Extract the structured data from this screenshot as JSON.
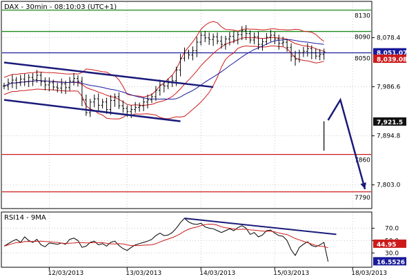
{
  "chart_data": {
    "type": "line",
    "title": "DAX - 30min - 08:10:03 (UTC+1)",
    "x_labels": [
      "12/03/2013",
      "13/03/2013",
      "14/03/2013",
      "15/03/2013",
      "18/03/2013"
    ],
    "price_panel": {
      "ylim": [
        7760,
        8145
      ],
      "tick_labels": [
        {
          "value": 8078.4,
          "text": "8,078.4"
        },
        {
          "value": 7986.6,
          "text": "7,986.6"
        },
        {
          "value": 7894.8,
          "text": "7,894.8"
        },
        {
          "value": 7803.0,
          "text": "7,803.0"
        }
      ],
      "levels": [
        {
          "value": 8130,
          "label": "8130",
          "color": "#1a8a1a"
        },
        {
          "value": 8090,
          "label": "8090",
          "color": "#1a8a1a"
        },
        {
          "value": 8050,
          "label": "8050",
          "color": "#1a1aa0"
        },
        {
          "value": 7860,
          "label": "7860",
          "color": "#cc1a1a"
        },
        {
          "value": 7790,
          "label": "7790",
          "color": "#cc1a1a"
        }
      ],
      "price_boxes": [
        {
          "value": 8051.07,
          "text": "8,051.07",
          "bg": "#1a1a9a"
        },
        {
          "value": 8039.08,
          "text": "8,039.08",
          "bg": "#cc1a1a"
        },
        {
          "value": 7921.5,
          "text": "7,921.5",
          "bg": "#111111"
        }
      ],
      "close_series": [
        7988,
        7994,
        7999,
        7994,
        8001,
        7996,
        8004,
        8000,
        8008,
        7996,
        7990,
        7994,
        7986,
        7984,
        7992,
        7985,
        7997,
        8002,
        7997,
        7962,
        7938,
        7958,
        7964,
        7952,
        7958,
        7944,
        7961,
        7968,
        7951,
        7946,
        7940,
        7944,
        7948,
        7951,
        7958,
        7962,
        7968,
        7980,
        7990,
        7988,
        7994,
        7998,
        8018,
        8040,
        8050,
        8046,
        8054,
        8070,
        8083,
        8078,
        8075,
        8080,
        8072,
        8066,
        8076,
        8081,
        8074,
        8084,
        8092,
        8086,
        8074,
        8080,
        8066,
        8071,
        8079,
        8083,
        8076,
        8068,
        8070,
        8060,
        8044,
        8038,
        8050,
        8053,
        8058,
        8050,
        8044,
        8047,
        8052
      ],
      "gap_bar": {
        "low": 7867,
        "high": 7922
      },
      "channel_lines": [
        {
          "from": [
            0,
            8032
          ],
          "to": [
            51,
            7986
          ]
        },
        {
          "from": [
            0,
            7962
          ],
          "to": [
            43,
            7922
          ]
        }
      ],
      "forecast_arrow": [
        {
          "x": 79,
          "y": 7924
        },
        {
          "x": 82,
          "y": 7962
        },
        {
          "x": 88,
          "y": 7795
        }
      ]
    },
    "rsi_panel": {
      "label": "RSI14 - 9MA",
      "ylim": [
        8,
        95
      ],
      "tick_labels": [
        {
          "value": 70,
          "text": "70.0"
        },
        {
          "value": 50,
          "text": "50.0"
        },
        {
          "value": 30,
          "text": "30.0"
        }
      ],
      "boxes": [
        {
          "value": 44.95,
          "text": "44.95",
          "bg": "#cc1a1a"
        },
        {
          "value": 16.5526,
          "text": "16.5526",
          "bg": "#1a1a9a"
        }
      ],
      "rsi_values": [
        41,
        45,
        49,
        52,
        47,
        56,
        50,
        47,
        52,
        43,
        40,
        46,
        45,
        44,
        46,
        44,
        52,
        54,
        50,
        39,
        41,
        47,
        49,
        43,
        45,
        41,
        47,
        49,
        42,
        37,
        34,
        39,
        43,
        45,
        47,
        49,
        52,
        58,
        62,
        58,
        59,
        63,
        70,
        79,
        86,
        80,
        77,
        76,
        78,
        72,
        70,
        69,
        66,
        63,
        66,
        69,
        66,
        71,
        74,
        70,
        60,
        63,
        56,
        59,
        66,
        67,
        62,
        58,
        57,
        50,
        35,
        26,
        39,
        44,
        48,
        42,
        40,
        43,
        47,
        16
      ],
      "trend_line": {
        "from": [
          44,
          86
        ],
        "to": [
          81,
          60
        ]
      }
    }
  }
}
